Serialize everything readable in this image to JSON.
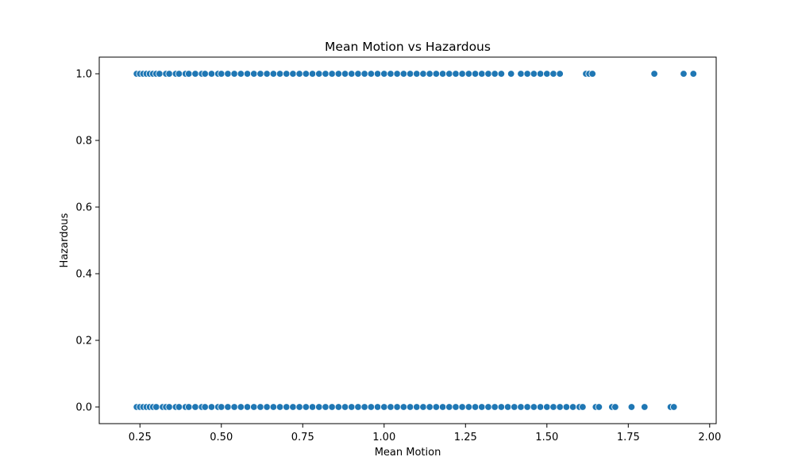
{
  "chart_data": {
    "type": "scatter",
    "title": "Mean Motion vs Hazardous",
    "xlabel": "Mean Motion",
    "ylabel": "Hazardous",
    "xlim": [
      0.125,
      2.02
    ],
    "ylim": [
      -0.05,
      1.05
    ],
    "xticks": [
      0.25,
      0.5,
      0.75,
      1.0,
      1.25,
      1.5,
      1.75,
      2.0
    ],
    "xtick_labels": [
      "0.25",
      "0.50",
      "0.75",
      "1.00",
      "1.25",
      "1.50",
      "1.75",
      "2.00"
    ],
    "yticks": [
      0.0,
      0.2,
      0.4,
      0.6,
      0.8,
      1.0
    ],
    "ytick_labels": [
      "0.0",
      "0.2",
      "0.4",
      "0.6",
      "0.8",
      "1.0"
    ],
    "grid": false,
    "colors": {
      "point": "#1f77b4",
      "axes": "#000000",
      "background": "#ffffff"
    },
    "series": [
      {
        "y": 1,
        "x": [
          0.24,
          0.25,
          0.26,
          0.27,
          0.28,
          0.29,
          0.3,
          0.31,
          0.33,
          0.34,
          0.36,
          0.37,
          0.39,
          0.4,
          0.42,
          0.44,
          0.45,
          0.47,
          0.49,
          0.5,
          0.52,
          0.54,
          0.56,
          0.58,
          0.6,
          0.62,
          0.64,
          0.66,
          0.68,
          0.7,
          0.72,
          0.74,
          0.76,
          0.78,
          0.8,
          0.82,
          0.84,
          0.86,
          0.88,
          0.9,
          0.92,
          0.94,
          0.96,
          0.98,
          1.0,
          1.02,
          1.04,
          1.06,
          1.08,
          1.1,
          1.12,
          1.14,
          1.16,
          1.18,
          1.2,
          1.22,
          1.24,
          1.26,
          1.28,
          1.3,
          1.32,
          1.34,
          1.36,
          1.39,
          1.42,
          1.44,
          1.46,
          1.48,
          1.5,
          1.52,
          1.54,
          1.62,
          1.63,
          1.64,
          1.83,
          1.92,
          1.95
        ]
      },
      {
        "y": 0,
        "x": [
          0.24,
          0.25,
          0.26,
          0.27,
          0.28,
          0.29,
          0.3,
          0.32,
          0.33,
          0.34,
          0.36,
          0.37,
          0.39,
          0.4,
          0.42,
          0.44,
          0.45,
          0.47,
          0.49,
          0.5,
          0.52,
          0.54,
          0.56,
          0.58,
          0.6,
          0.62,
          0.64,
          0.66,
          0.68,
          0.7,
          0.72,
          0.74,
          0.76,
          0.78,
          0.8,
          0.82,
          0.84,
          0.86,
          0.88,
          0.9,
          0.92,
          0.94,
          0.96,
          0.98,
          1.0,
          1.02,
          1.04,
          1.06,
          1.08,
          1.1,
          1.12,
          1.14,
          1.16,
          1.18,
          1.2,
          1.22,
          1.24,
          1.26,
          1.28,
          1.3,
          1.32,
          1.34,
          1.36,
          1.38,
          1.4,
          1.42,
          1.44,
          1.46,
          1.48,
          1.5,
          1.52,
          1.54,
          1.56,
          1.58,
          1.6,
          1.61,
          1.65,
          1.66,
          1.7,
          1.71,
          1.76,
          1.8,
          1.88,
          1.89
        ]
      }
    ]
  }
}
